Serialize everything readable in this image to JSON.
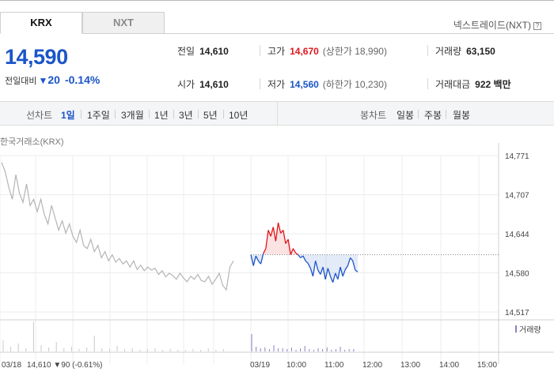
{
  "tabs": [
    {
      "label": "KRX",
      "active": true
    },
    {
      "label": "NXT",
      "active": false
    }
  ],
  "nxt_link": "넥스트레이드(NXT)",
  "help_icon": "question-icon",
  "quote": {
    "price": "14,590",
    "change_label": "전일대비",
    "change_direction": "down",
    "change_amount": "20",
    "change_percent": "-0.14%"
  },
  "stats": {
    "prev_close": {
      "label": "전일",
      "value": "14,610"
    },
    "high": {
      "label": "고가",
      "value": "14,670",
      "sub": "(상한가 18,990)"
    },
    "volume": {
      "label": "거래량",
      "value": "63,150"
    },
    "open": {
      "label": "시가",
      "value": "14,610"
    },
    "low": {
      "label": "저가",
      "value": "14,560",
      "sub": "(하한가 10,230)"
    },
    "trade_value": {
      "label": "거래대금",
      "value": "922 백만"
    }
  },
  "periods": {
    "line_chart_label": "선차트",
    "line_options": [
      "1일",
      "1주일",
      "3개월",
      "1년",
      "3년",
      "5년",
      "10년"
    ],
    "selected": "1일",
    "candle_chart_label": "봉차트",
    "candle_options": [
      "일봉",
      "주봉",
      "월봉"
    ]
  },
  "market_caption": "한국거래소(KRX)",
  "colors": {
    "up": "#e0161b",
    "down": "#1b55c7",
    "prev": "#b4b4b4"
  },
  "chart_data": {
    "type": "line",
    "y_ticks": [
      "14,771",
      "14,707",
      "14,644",
      "14,580",
      "14,517"
    ],
    "ylim": [
      14517,
      14771
    ],
    "x_ticks": [
      "03/19",
      "10:00",
      "11:00",
      "12:00",
      "13:00",
      "14:00",
      "15:00"
    ],
    "reference_price": 14610,
    "prev_day_label": "03/18",
    "prev_day_close": "14,610",
    "prev_day_change": "▼90 (-0.61%)",
    "volume_legend": "거래량",
    "prev_day_series": [
      14760,
      14745,
      14720,
      14700,
      14740,
      14710,
      14695,
      14725,
      14690,
      14700,
      14680,
      14700,
      14675,
      14660,
      14690,
      14670,
      14650,
      14665,
      14645,
      14660,
      14640,
      14630,
      14650,
      14625,
      14620,
      14635,
      14615,
      14625,
      14605,
      14615,
      14600,
      14610,
      14598,
      14604,
      14595,
      14600,
      14590,
      14600,
      14586,
      14593,
      14584,
      14590,
      14585,
      14588,
      14578,
      14584,
      14574,
      14580,
      14576,
      14570,
      14580,
      14572,
      14566,
      14575,
      14570,
      14578,
      14568,
      14566,
      14575,
      14562,
      14570,
      14580,
      14560,
      14553,
      14590,
      14600
    ],
    "today_series": [
      14610,
      14592,
      14608,
      14600,
      14595,
      14612,
      14620,
      14650,
      14640,
      14655,
      14632,
      14662,
      14645,
      14650,
      14628,
      14635,
      14610,
      14620,
      14613,
      14610,
      14605,
      14608,
      14600,
      14596,
      14588,
      14575,
      14600,
      14585,
      14578,
      14590,
      14570,
      14588,
      14575,
      14565,
      14580,
      14570,
      14590,
      14575,
      14586,
      14592,
      14605,
      14600,
      14585,
      14582
    ]
  }
}
